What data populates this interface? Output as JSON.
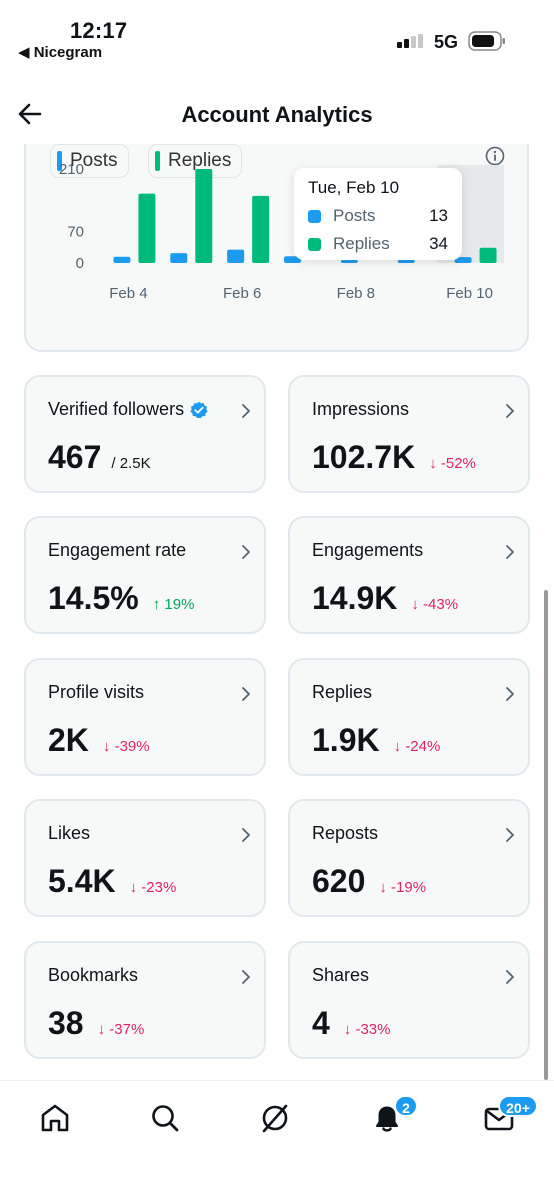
{
  "status_bar": {
    "time": "12:17",
    "back_app": "◀ Nicegram",
    "network": "5G"
  },
  "header": {
    "title": "Account Analytics"
  },
  "legend": {
    "posts": "Posts",
    "replies": "Replies"
  },
  "colors": {
    "posts": "#1d9bf0",
    "replies": "#00ba7c",
    "down": "#e0245e",
    "up": "#00a65a"
  },
  "chart_data": {
    "type": "bar",
    "categories": [
      "Feb 4",
      "Feb 5",
      "Feb 6",
      "Feb 7",
      "Feb 8",
      "Feb 9",
      "Feb 10"
    ],
    "x_tick_labels": [
      "Feb 4",
      "Feb 6",
      "Feb 8",
      "Feb 10"
    ],
    "y_tick_labels": [
      "210",
      "70",
      "0"
    ],
    "ylim": [
      0,
      210
    ],
    "series": [
      {
        "name": "Posts",
        "values": [
          14,
          22,
          30,
          15,
          7,
          7,
          13
        ]
      },
      {
        "name": "Replies",
        "values": [
          155,
          210,
          150,
          0,
          0,
          0,
          34
        ]
      }
    ],
    "highlighted_category": "Feb 10",
    "grid": false
  },
  "tooltip": {
    "title": "Tue, Feb 10",
    "posts_label": "Posts",
    "posts_value": "13",
    "replies_label": "Replies",
    "replies_value": "34"
  },
  "metrics": [
    {
      "label": "Verified followers",
      "value": "467",
      "sub": "/ 2.5K",
      "change": ""
    },
    {
      "label": "Impressions",
      "value": "102.7K",
      "sub": "",
      "change": "↓ -52%"
    },
    {
      "label": "Engagement rate",
      "value": "14.5%",
      "sub": "",
      "change": "↑ 19%"
    },
    {
      "label": "Engagements",
      "value": "14.9K",
      "sub": "",
      "change": "↓ -43%"
    },
    {
      "label": "Profile visits",
      "value": "2K",
      "sub": "",
      "change": "↓ -39%"
    },
    {
      "label": "Replies",
      "value": "1.9K",
      "sub": "",
      "change": "↓ -24%"
    },
    {
      "label": "Likes",
      "value": "5.4K",
      "sub": "",
      "change": "↓ -23%"
    },
    {
      "label": "Reposts",
      "value": "620",
      "sub": "",
      "change": "↓ -19%"
    },
    {
      "label": "Bookmarks",
      "value": "38",
      "sub": "",
      "change": "↓ -37%"
    },
    {
      "label": "Shares",
      "value": "4",
      "sub": "",
      "change": "↓ -33%"
    }
  ],
  "nav": {
    "home": "home-icon",
    "search": "search-icon",
    "grok": "grok-icon",
    "notifications": "bell-icon",
    "messages": "envelope-icon",
    "notifications_badge": "2",
    "messages_badge": "20+"
  }
}
